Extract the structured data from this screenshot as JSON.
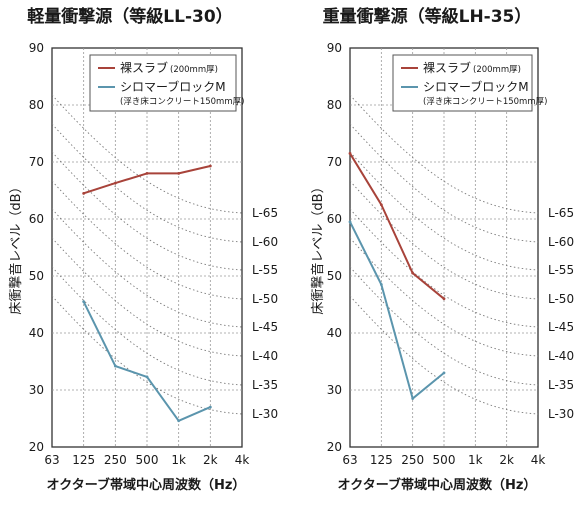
{
  "chart_data": [
    {
      "type": "line",
      "title": "軽量衝撃源（等級LL-30）",
      "xlabel": "オクターブ帯域中心周波数（Hz）",
      "ylabel": "床衝撃音レベル（dB）",
      "categories": [
        "63",
        "125",
        "250",
        "500",
        "1k",
        "2k",
        "4k"
      ],
      "ylim": [
        20,
        90
      ],
      "yticks": [
        20,
        30,
        40,
        50,
        60,
        70,
        80,
        90
      ],
      "grid": true,
      "legend_position": "top-right",
      "series": [
        {
          "name": "裸スラブ",
          "name_note": "(200mm厚)",
          "color": "#a8433a",
          "values": [
            null,
            64.5,
            66.3,
            68.0,
            68.0,
            69.3,
            null
          ]
        },
        {
          "name": "シロマーブロックM",
          "name_note": "(浮き床コンクリート150mm厚)",
          "color": "#5b95ad",
          "values": [
            null,
            45.5,
            34.2,
            32.3,
            24.6,
            27.0,
            null
          ]
        }
      ],
      "rating_curves": [
        "L-65",
        "L-60",
        "L-55",
        "L-50",
        "L-45",
        "L-40",
        "L-35",
        "L-30"
      ]
    },
    {
      "type": "line",
      "title": "重量衝撃源（等級LH-35）",
      "xlabel": "オクターブ帯域中心周波数（Hz）",
      "ylabel": "床衝撃音レベル（dB）",
      "categories": [
        "63",
        "125",
        "250",
        "500",
        "1k",
        "2k",
        "4k"
      ],
      "ylim": [
        20,
        90
      ],
      "yticks": [
        20,
        30,
        40,
        50,
        60,
        70,
        80,
        90
      ],
      "grid": true,
      "legend_position": "top-right",
      "series": [
        {
          "name": "裸スラブ",
          "name_note": "(200mm厚)",
          "color": "#a8433a",
          "values": [
            71.5,
            62.5,
            50.5,
            46.0,
            null,
            null,
            null
          ]
        },
        {
          "name": "シロマーブロックM",
          "name_note": "(浮き床コンクリート150mm厚)",
          "color": "#5b95ad",
          "values": [
            59.5,
            48.5,
            28.5,
            33.0,
            null,
            null,
            null
          ]
        }
      ],
      "rating_curves": [
        "L-65",
        "L-60",
        "L-55",
        "L-50",
        "L-45",
        "L-40",
        "L-35",
        "L-30"
      ]
    }
  ]
}
